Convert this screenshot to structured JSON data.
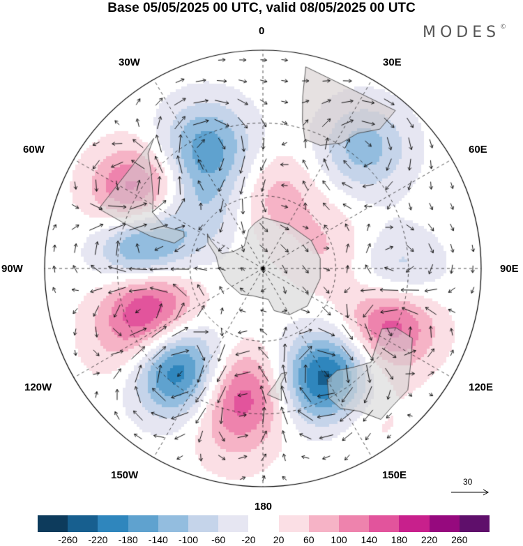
{
  "title": "Base 05/05/2025 00 UTC, valid 08/05/2025 00 UTC",
  "brand": "MODES",
  "brand_mark": "©",
  "longitude_labels": {
    "l0": "0",
    "l30e": "30E",
    "l60e": "60E",
    "l90e": "90E",
    "l120e": "120E",
    "l150e": "150E",
    "l180": "180",
    "l150w": "150W",
    "l120w": "120W",
    "l90w": "90W",
    "l60w": "60W",
    "l30w": "30W"
  },
  "reference_vector": {
    "label": "30"
  },
  "colorbar": {
    "colors": [
      "#0d3b5c",
      "#175f8f",
      "#2f86bd",
      "#5fa2cf",
      "#93bddf",
      "#c5d4ea",
      "#e6e6f2",
      "#ffffff",
      "#fbdfe5",
      "#f6b3c6",
      "#ee83ad",
      "#e2549c",
      "#c8208c",
      "#96097e",
      "#5f0f6b"
    ],
    "ticks": [
      "-260",
      "-220",
      "-180",
      "-140",
      "-100",
      "-60",
      "-20",
      "20",
      "60",
      "100",
      "140",
      "180",
      "220",
      "260"
    ]
  },
  "anomalies": [
    {
      "lon": 40,
      "lat": -25,
      "v": -120
    },
    {
      "lon": -25,
      "lat": -35,
      "v": -160
    },
    {
      "lon": -60,
      "lat": -30,
      "v": 200
    },
    {
      "lon": -80,
      "lat": -40,
      "v": -240
    },
    {
      "lon": -105,
      "lat": -42,
      "v": 200
    },
    {
      "lon": -140,
      "lat": -35,
      "v": -240
    },
    {
      "lon": -170,
      "lat": -38,
      "v": 160
    },
    {
      "lon": 150,
      "lat": -37,
      "v": -260
    },
    {
      "lon": 112,
      "lat": -33,
      "v": 200
    },
    {
      "lon": 95,
      "lat": -35,
      "v": -120
    },
    {
      "lon": -120,
      "lat": -28,
      "v": 80
    },
    {
      "lon": 10,
      "lat": -60,
      "v": 80
    },
    {
      "lon": 75,
      "lat": -62,
      "v": 60
    },
    {
      "lon": -45,
      "lat": -55,
      "v": -80
    },
    {
      "lon": 145,
      "lat": -20,
      "v": 60
    },
    {
      "lon": -170,
      "lat": -20,
      "v": 40
    }
  ]
}
